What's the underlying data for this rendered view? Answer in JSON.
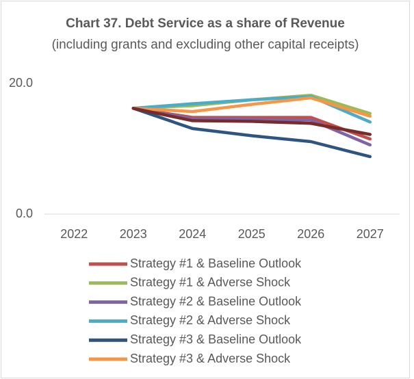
{
  "chart_data": {
    "type": "line",
    "title": "Chart 37. Debt Service as a share of Revenue",
    "subtitle": "(including grants and excluding other capital receipts)",
    "categories": [
      "2022",
      "2023",
      "2024",
      "2025",
      "2026",
      "2027"
    ],
    "series": [
      {
        "name": "Strategy #1 & Baseline Outlook",
        "color": "#c0504d",
        "values": [
          null,
          16.2,
          14.8,
          14.8,
          14.8,
          11.5
        ]
      },
      {
        "name": "Strategy #1 & Adverse Shock",
        "color": "#9bbb59",
        "values": [
          null,
          16.2,
          16.6,
          17.5,
          18.2,
          15.4
        ]
      },
      {
        "name": "Strategy #2 & Baseline Outlook",
        "color": "#8064a2",
        "values": [
          null,
          16.2,
          14.6,
          14.5,
          14.4,
          10.6
        ]
      },
      {
        "name": "Strategy #2 & Adverse Shock",
        "color": "#4bacc6",
        "values": [
          null,
          16.2,
          16.9,
          17.5,
          18.0,
          14.1
        ]
      },
      {
        "name": "Strategy #3 & Baseline Outlook",
        "color": "#2e5581",
        "values": [
          null,
          16.2,
          13.1,
          12.0,
          11.1,
          8.8
        ]
      },
      {
        "name": "Strategy #3 & Adverse Shock",
        "color": "#f79646",
        "values": [
          null,
          16.2,
          15.7,
          16.8,
          17.8,
          15.0
        ]
      },
      {
        "color": "#772c2a",
        "values": [
          null,
          16.2,
          14.3,
          14.2,
          13.9,
          12.2
        ]
      }
    ],
    "ylim": [
      0,
      20
    ],
    "yticks": [
      {
        "value": 0,
        "label": "0.0"
      },
      {
        "value": 20,
        "label": "20.0"
      }
    ]
  }
}
